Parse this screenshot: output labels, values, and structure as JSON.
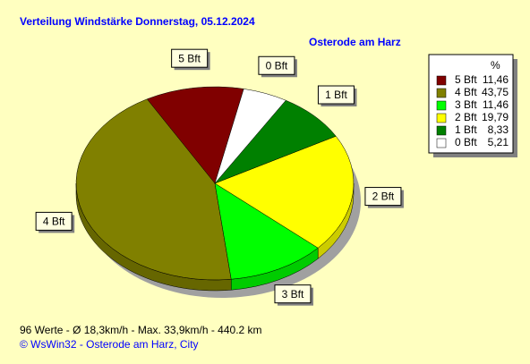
{
  "chart_data": {
    "type": "pie",
    "title": "Verteilung Windstärke  Donnerstag, 05.12.2024",
    "subtitle": "Osterode am Harz",
    "legend_header": "%",
    "categories": [
      "5 Bft",
      "4 Bft",
      "3 Bft",
      "2 Bft",
      "1 Bft",
      "0 Bft"
    ],
    "values": [
      11.46,
      43.75,
      11.46,
      19.79,
      8.33,
      5.21
    ],
    "value_labels": [
      "11,46",
      "43,75",
      "11,46",
      "19,79",
      "8,33",
      "5,21"
    ],
    "colors": [
      "#800000",
      "#808000",
      "#00ff00",
      "#ffff00",
      "#008000",
      "#ffffff"
    ],
    "legend": "top-right",
    "footer": "96 Werte   -   Ø 18,3km/h  -  Max. 33,9km/h   -   440.2 km",
    "credit": "© WsWin32  -  Osterode am Harz, City"
  }
}
